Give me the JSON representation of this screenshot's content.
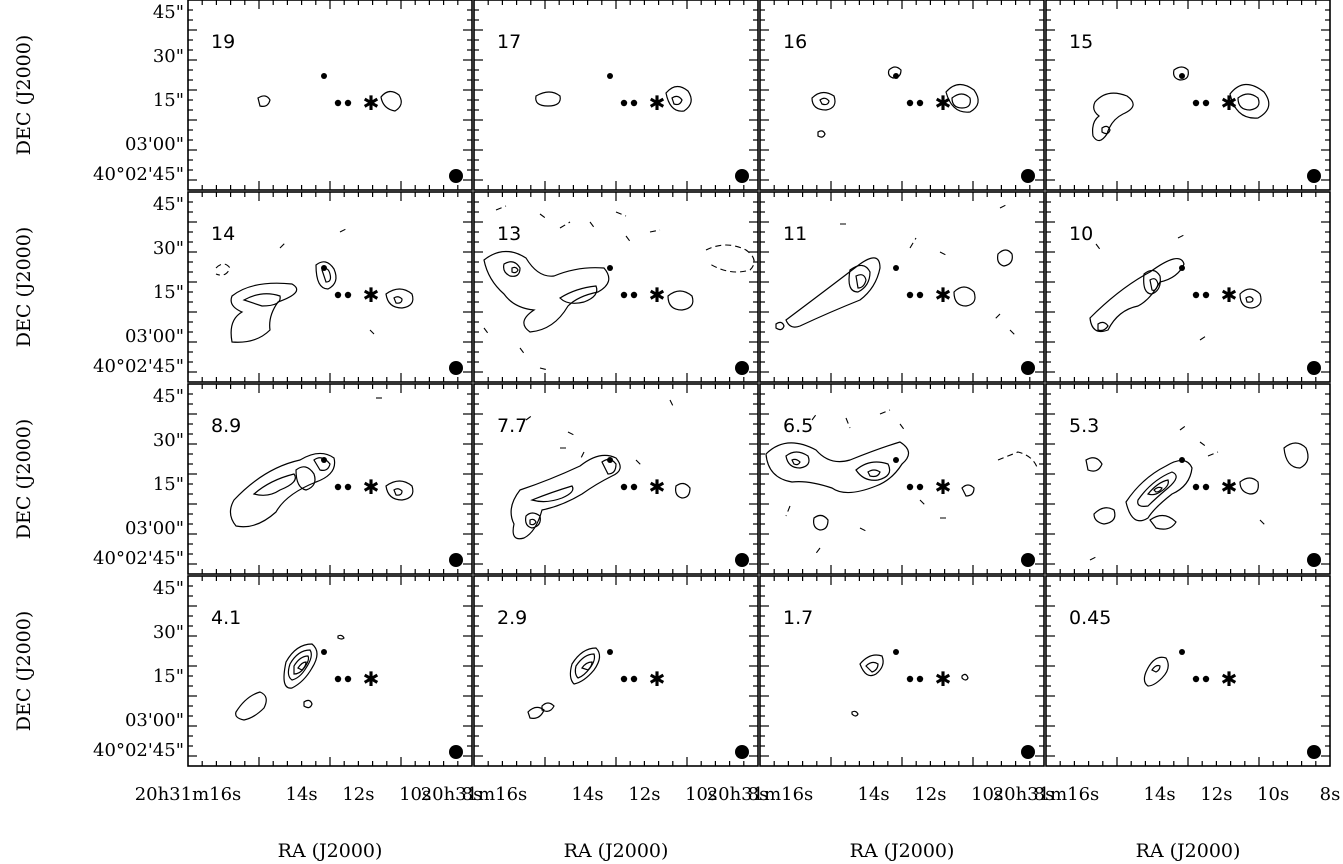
{
  "figure": {
    "x_axis_label": "RA (J2000)",
    "y_axis_label": "DEC (J2000)",
    "ra_tick_labels": [
      "20h31m16s",
      "14s",
      "12s",
      "10s",
      "8s"
    ],
    "dec_tick_labels": [
      "45\"",
      "30\"",
      "15\"",
      "03'00\"",
      "40°02'45\""
    ],
    "beam_symbol": "filled-circle",
    "source_markers": [
      "dot",
      "dot",
      "dot",
      "dot",
      "star"
    ]
  },
  "panels": [
    {
      "velocity": "19"
    },
    {
      "velocity": "17"
    },
    {
      "velocity": "16"
    },
    {
      "velocity": "15"
    },
    {
      "velocity": "14"
    },
    {
      "velocity": "13"
    },
    {
      "velocity": "11"
    },
    {
      "velocity": "10"
    },
    {
      "velocity": "8.9"
    },
    {
      "velocity": "7.7"
    },
    {
      "velocity": "6.5"
    },
    {
      "velocity": "5.3"
    },
    {
      "velocity": "4.1"
    },
    {
      "velocity": "2.9"
    },
    {
      "velocity": "1.7"
    },
    {
      "velocity": "0.45"
    }
  ]
}
